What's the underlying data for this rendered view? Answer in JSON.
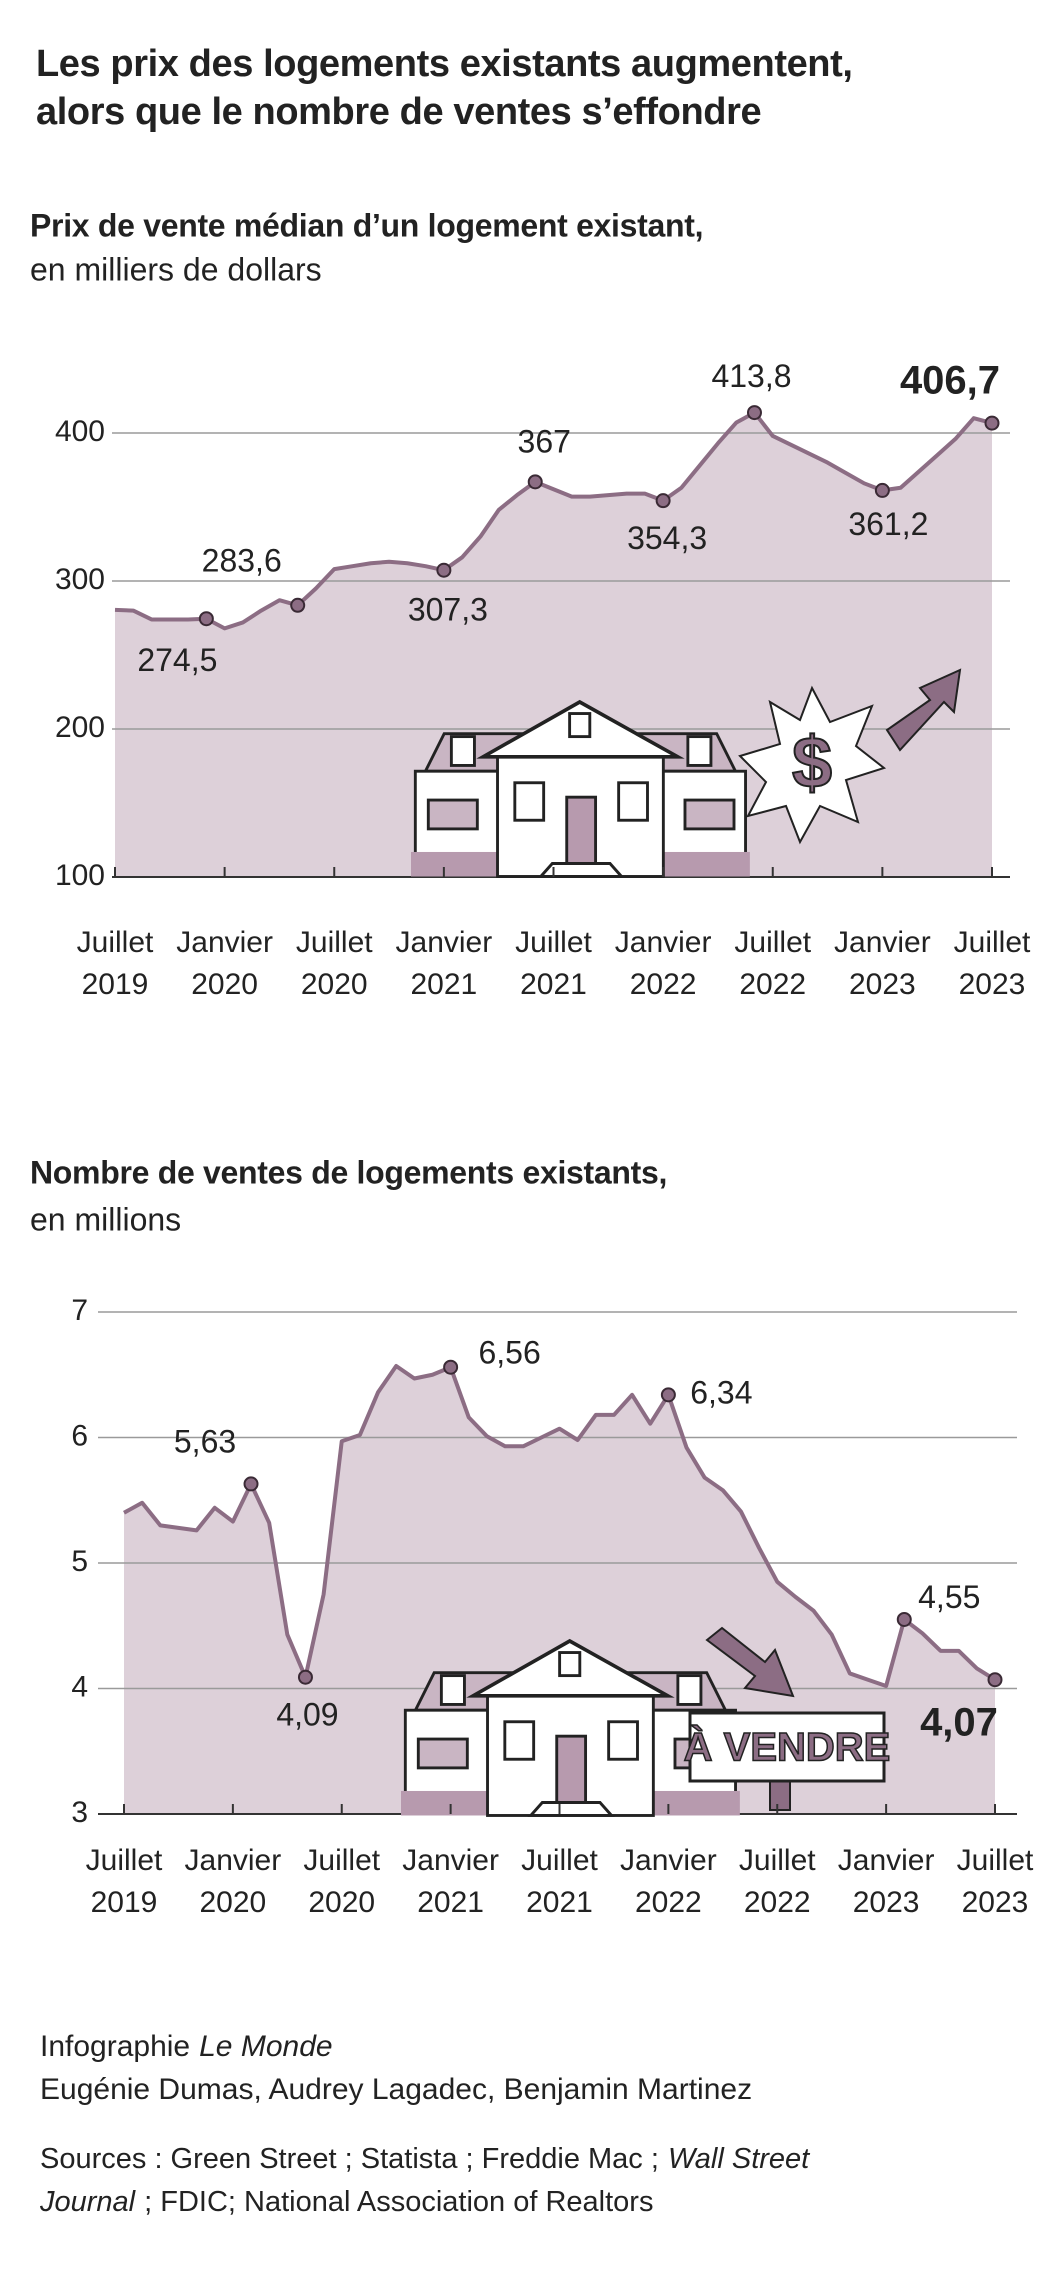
{
  "title": [
    "Les prix des logements existants augmentent,",
    "alors que le nombre de ventes s’effondre"
  ],
  "chart_data": [
    {
      "type": "area",
      "title": "Prix de vente médian d’un logement existant,",
      "subtitle": "en milliers de dollars",
      "categories": [
        "Juillet 2019",
        null,
        null,
        null,
        null,
        null,
        "Janvier 2020",
        null,
        null,
        null,
        null,
        null,
        "Juillet 2020",
        null,
        null,
        null,
        null,
        null,
        "Janvier 2021",
        null,
        null,
        null,
        null,
        null,
        "Juillet 2021",
        null,
        null,
        null,
        null,
        null,
        "Janvier 2022",
        null,
        null,
        null,
        null,
        null,
        "Juillet 2022",
        null,
        null,
        null,
        null,
        null,
        "Janvier 2023",
        null,
        null,
        null,
        null,
        null,
        "Juillet 2023"
      ],
      "values": [
        280.5,
        280,
        274,
        274,
        274,
        274.5,
        268,
        272,
        280,
        287,
        283.6,
        295,
        308,
        310,
        312,
        313,
        312,
        310,
        307.3,
        316,
        330,
        348,
        358,
        367,
        362,
        357,
        357,
        358,
        359,
        359,
        354.3,
        363,
        378,
        393,
        407,
        413.8,
        398,
        392,
        386,
        380,
        373,
        366,
        361.2,
        363,
        374,
        385,
        396,
        410,
        406.7
      ],
      "value_labels": [
        null,
        null,
        null,
        null,
        null,
        "274,5",
        null,
        null,
        null,
        null,
        "283,6",
        null,
        null,
        null,
        null,
        null,
        null,
        null,
        "307,3",
        null,
        null,
        null,
        null,
        "367",
        null,
        null,
        null,
        null,
        null,
        null,
        "354,3",
        null,
        null,
        null,
        null,
        "413,8",
        null,
        null,
        null,
        null,
        null,
        null,
        "361,2",
        null,
        null,
        null,
        null,
        null,
        "406,7"
      ],
      "color": "#8c6d84",
      "fill": "#ddd0d9",
      "ylim": [
        100,
        400
      ],
      "yticks": [
        100,
        200,
        300,
        400
      ],
      "grid": true,
      "illustration_label": "$"
    },
    {
      "type": "area",
      "title": "Nombre de ventes de logements existants,",
      "subtitle": "en millions",
      "categories": [
        "Juillet 2019",
        null,
        null,
        null,
        null,
        null,
        "Janvier 2020",
        null,
        null,
        null,
        null,
        null,
        "Juillet 2020",
        null,
        null,
        null,
        null,
        null,
        "Janvier 2021",
        null,
        null,
        null,
        null,
        null,
        "Juillet 2021",
        null,
        null,
        null,
        null,
        null,
        "Janvier 2022",
        null,
        null,
        null,
        null,
        null,
        "Juillet 2022",
        null,
        null,
        null,
        null,
        null,
        "Janvier 2023",
        null,
        null,
        null,
        null,
        null,
        "Juillet 2023"
      ],
      "values": [
        5.4,
        5.48,
        5.3,
        5.28,
        5.26,
        5.44,
        5.33,
        5.63,
        5.32,
        4.43,
        4.09,
        4.75,
        5.97,
        6.02,
        6.36,
        6.57,
        6.47,
        6.5,
        6.56,
        6.16,
        6.01,
        5.93,
        5.93,
        6.0,
        6.07,
        5.98,
        6.18,
        6.18,
        6.34,
        6.11,
        6.34,
        5.92,
        5.68,
        5.58,
        5.41,
        5.12,
        4.85,
        4.73,
        4.62,
        4.43,
        4.12,
        4.07,
        4.02,
        4.55,
        4.44,
        4.3,
        4.3,
        4.16,
        4.07
      ],
      "value_labels": [
        null,
        null,
        null,
        null,
        null,
        null,
        null,
        "5,63",
        null,
        null,
        "4,09",
        null,
        null,
        null,
        null,
        null,
        null,
        null,
        "6,56",
        null,
        null,
        null,
        null,
        null,
        null,
        null,
        null,
        null,
        null,
        null,
        "6,34",
        null,
        null,
        null,
        null,
        null,
        null,
        null,
        null,
        null,
        null,
        null,
        null,
        "4,55",
        null,
        null,
        null,
        null,
        "4,07"
      ],
      "color": "#8c6d84",
      "fill": "#ddd0d9",
      "ylim": [
        3,
        7
      ],
      "yticks": [
        3,
        4,
        5,
        6,
        7
      ],
      "grid": true,
      "illustration_label": "À VENDRE"
    }
  ],
  "footer": {
    "credit_label": "Infographie",
    "credit_outlet": "Le Monde",
    "authors": "Eugénie Dumas, Audrey Lagadec, Benjamin Martinez",
    "sources": [
      [
        "Sources : Green Street ; Statista ; Freddie Mac ;",
        "Wall Street"
      ],
      [
        "Journal",
        "; FDIC; National Association of Realtors"
      ]
    ]
  }
}
